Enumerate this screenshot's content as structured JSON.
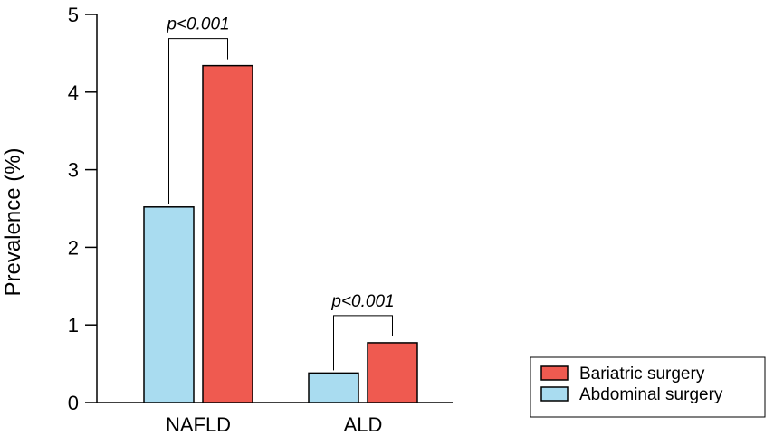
{
  "chart_data": {
    "type": "bar",
    "categories": [
      "NAFLD",
      "ALD"
    ],
    "series": [
      {
        "name": "Abdominal surgery",
        "values": [
          2.52,
          0.38
        ],
        "color": "#a9dcf0"
      },
      {
        "name": "Bariatric surgery",
        "values": [
          4.34,
          0.77
        ],
        "color": "#ef5a50"
      }
    ],
    "title": "",
    "xlabel": "",
    "ylabel": "Prevalence (%)",
    "ylim": [
      0,
      5
    ],
    "yticks": [
      "0",
      "1",
      "2",
      "3",
      "4",
      "5"
    ],
    "grid": false,
    "legend_position": "bottom-right",
    "legend_order": [
      "Bariatric surgery",
      "Abdominal surgery"
    ],
    "annotations": [
      {
        "category": "NAFLD",
        "text": "p<0.001"
      },
      {
        "category": "ALD",
        "text": "p<0.001"
      }
    ]
  }
}
